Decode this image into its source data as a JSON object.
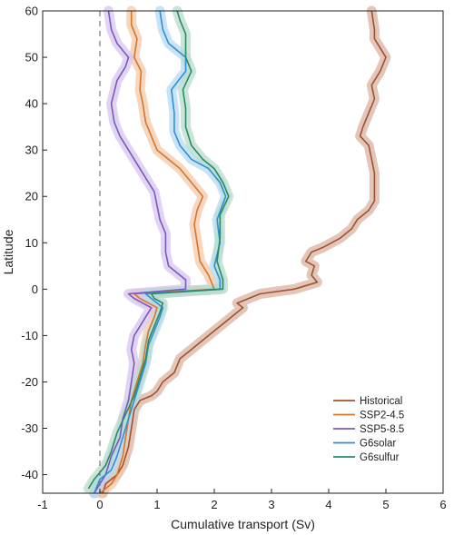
{
  "chart_data": {
    "type": "line",
    "title": "",
    "xlabel": "Cumulative transport (Sv)",
    "ylabel": "Latitude",
    "xlim": [
      -1,
      6
    ],
    "ylim": [
      -44,
      60
    ],
    "xticks": [
      -1,
      0,
      1,
      2,
      3,
      4,
      5,
      6
    ],
    "yticks": [
      -40,
      -30,
      -20,
      -10,
      0,
      10,
      20,
      30,
      40,
      50,
      60
    ],
    "xtick_labels": [
      "-1",
      "0",
      "1",
      "2",
      "3",
      "4",
      "5",
      "6"
    ],
    "ytick_labels": [
      "-40",
      "-30",
      "-20",
      "-10",
      "0",
      "10",
      "20",
      "30",
      "40",
      "50",
      "60"
    ],
    "reference_line": {
      "x": 0,
      "style": "dashed"
    },
    "grid": false,
    "legend_position": "lower-right",
    "series": [
      {
        "name": "Historical",
        "color": "#a0522d",
        "band_color": "#d9b3a3",
        "points": [
          [
            0.05,
            -44
          ],
          [
            0.1,
            -42
          ],
          [
            0.3,
            -40
          ],
          [
            0.4,
            -38
          ],
          [
            0.5,
            -34
          ],
          [
            0.55,
            -30
          ],
          [
            0.6,
            -26
          ],
          [
            0.7,
            -24
          ],
          [
            0.9,
            -23
          ],
          [
            1.0,
            -22
          ],
          [
            1.1,
            -20
          ],
          [
            1.3,
            -18
          ],
          [
            1.4,
            -15
          ],
          [
            1.6,
            -13
          ],
          [
            1.8,
            -11
          ],
          [
            2.0,
            -9
          ],
          [
            2.3,
            -6
          ],
          [
            2.5,
            -4
          ],
          [
            2.4,
            -3
          ],
          [
            2.6,
            -2
          ],
          [
            2.8,
            -1
          ],
          [
            3.4,
            0
          ],
          [
            3.8,
            1.5
          ],
          [
            3.7,
            3
          ],
          [
            3.75,
            5
          ],
          [
            3.6,
            6
          ],
          [
            3.7,
            8
          ],
          [
            3.9,
            9
          ],
          [
            4.2,
            11
          ],
          [
            4.4,
            13
          ],
          [
            4.5,
            15
          ],
          [
            4.7,
            17
          ],
          [
            4.8,
            19
          ],
          [
            4.8,
            22
          ],
          [
            4.8,
            25
          ],
          [
            4.75,
            28
          ],
          [
            4.7,
            31
          ],
          [
            4.55,
            33
          ],
          [
            4.6,
            35
          ],
          [
            4.7,
            38
          ],
          [
            4.8,
            41
          ],
          [
            4.75,
            44
          ],
          [
            4.9,
            47
          ],
          [
            5.0,
            50
          ],
          [
            4.8,
            54
          ],
          [
            4.8,
            56
          ],
          [
            4.75,
            60
          ]
        ]
      },
      {
        "name": "SSP2-4.5",
        "color": "#d9752a",
        "band_color": "#f2c8a8",
        "points": [
          [
            0.0,
            -44
          ],
          [
            0.2,
            -42
          ],
          [
            0.3,
            -40
          ],
          [
            0.4,
            -36
          ],
          [
            0.45,
            -32
          ],
          [
            0.5,
            -28
          ],
          [
            0.55,
            -24
          ],
          [
            0.65,
            -20
          ],
          [
            0.75,
            -16
          ],
          [
            0.8,
            -12
          ],
          [
            0.85,
            -9
          ],
          [
            0.95,
            -6
          ],
          [
            1.0,
            -4
          ],
          [
            0.7,
            -2
          ],
          [
            0.6,
            -1
          ],
          [
            2.0,
            0
          ],
          [
            1.9,
            3
          ],
          [
            1.75,
            6
          ],
          [
            1.7,
            10
          ],
          [
            1.65,
            14
          ],
          [
            1.7,
            17
          ],
          [
            1.8,
            20
          ],
          [
            1.6,
            23
          ],
          [
            1.4,
            26
          ],
          [
            1.2,
            28
          ],
          [
            1.0,
            30
          ],
          [
            0.9,
            33
          ],
          [
            0.8,
            36
          ],
          [
            0.75,
            40
          ],
          [
            0.7,
            43
          ],
          [
            0.72,
            47
          ],
          [
            0.6,
            50
          ],
          [
            0.65,
            54
          ],
          [
            0.55,
            57
          ],
          [
            0.55,
            60
          ]
        ]
      },
      {
        "name": "SSP5-8.5",
        "color": "#7b58c0",
        "band_color": "#d5c6ee",
        "points": [
          [
            -0.1,
            -44
          ],
          [
            0.0,
            -42
          ],
          [
            0.1,
            -40
          ],
          [
            0.2,
            -36
          ],
          [
            0.35,
            -32
          ],
          [
            0.4,
            -28
          ],
          [
            0.5,
            -24
          ],
          [
            0.55,
            -20
          ],
          [
            0.6,
            -16
          ],
          [
            0.55,
            -13
          ],
          [
            0.6,
            -10
          ],
          [
            0.75,
            -7
          ],
          [
            0.9,
            -4
          ],
          [
            0.6,
            -2
          ],
          [
            0.5,
            -1
          ],
          [
            1.5,
            0
          ],
          [
            1.5,
            2
          ],
          [
            1.2,
            5
          ],
          [
            1.15,
            8
          ],
          [
            1.15,
            12
          ],
          [
            1.05,
            15
          ],
          [
            1.0,
            18
          ],
          [
            0.95,
            21
          ],
          [
            0.8,
            24
          ],
          [
            0.7,
            26
          ],
          [
            0.6,
            28
          ],
          [
            0.5,
            30
          ],
          [
            0.35,
            33
          ],
          [
            0.25,
            36
          ],
          [
            0.2,
            40
          ],
          [
            0.3,
            45
          ],
          [
            0.45,
            48
          ],
          [
            0.5,
            50
          ],
          [
            0.3,
            53
          ],
          [
            0.2,
            56
          ],
          [
            0.15,
            60
          ]
        ]
      },
      {
        "name": "G6solar",
        "color": "#2f8fd6",
        "band_color": "#b5daf2",
        "points": [
          [
            -0.1,
            -44
          ],
          [
            0.0,
            -41
          ],
          [
            0.2,
            -39
          ],
          [
            0.3,
            -36
          ],
          [
            0.4,
            -32
          ],
          [
            0.5,
            -28
          ],
          [
            0.6,
            -24
          ],
          [
            0.7,
            -20
          ],
          [
            0.8,
            -16
          ],
          [
            0.85,
            -12
          ],
          [
            0.95,
            -9
          ],
          [
            1.05,
            -6
          ],
          [
            1.1,
            -4
          ],
          [
            0.9,
            -2
          ],
          [
            0.8,
            -1
          ],
          [
            2.1,
            0
          ],
          [
            2.1,
            2
          ],
          [
            2.0,
            5
          ],
          [
            2.1,
            10
          ],
          [
            2.05,
            15
          ],
          [
            2.2,
            20
          ],
          [
            2.1,
            23
          ],
          [
            1.9,
            26
          ],
          [
            1.6,
            28
          ],
          [
            1.4,
            31
          ],
          [
            1.3,
            34
          ],
          [
            1.3,
            38
          ],
          [
            1.25,
            43
          ],
          [
            1.5,
            47
          ],
          [
            1.5,
            50
          ],
          [
            1.2,
            53
          ],
          [
            1.1,
            56
          ],
          [
            1.05,
            60
          ]
        ]
      },
      {
        "name": "G6sulfur",
        "color": "#2a8a66",
        "band_color": "#b7dccb",
        "points": [
          [
            -0.2,
            -43
          ],
          [
            -0.1,
            -41
          ],
          [
            0.1,
            -38
          ],
          [
            0.2,
            -35
          ],
          [
            0.3,
            -31
          ],
          [
            0.45,
            -27
          ],
          [
            0.6,
            -23
          ],
          [
            0.7,
            -19
          ],
          [
            0.8,
            -15
          ],
          [
            0.85,
            -11
          ],
          [
            0.95,
            -8
          ],
          [
            1.05,
            -5
          ],
          [
            1.1,
            -3
          ],
          [
            0.95,
            -2
          ],
          [
            0.9,
            -1
          ],
          [
            2.15,
            0
          ],
          [
            2.15,
            2
          ],
          [
            2.05,
            6
          ],
          [
            2.1,
            11
          ],
          [
            2.1,
            16
          ],
          [
            2.25,
            20
          ],
          [
            2.15,
            23
          ],
          [
            2.0,
            26
          ],
          [
            1.8,
            28
          ],
          [
            1.6,
            31
          ],
          [
            1.5,
            35
          ],
          [
            1.5,
            39
          ],
          [
            1.45,
            43
          ],
          [
            1.6,
            47
          ],
          [
            1.5,
            50
          ],
          [
            1.5,
            55
          ],
          [
            1.4,
            58
          ],
          [
            1.35,
            60
          ]
        ]
      }
    ]
  }
}
